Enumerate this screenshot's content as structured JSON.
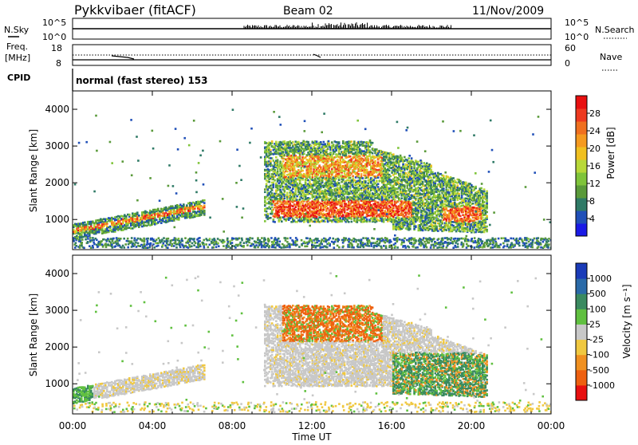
{
  "header": {
    "station": "Pykkvibaer (fitACF)",
    "beam": "Beam 02",
    "date": "11/Nov/2009"
  },
  "strip_labels": {
    "nsky": "N.Sky",
    "nsearch": "N.Search",
    "freq_line1": "Freq.",
    "freq_line2": "[MHz]",
    "nave": "Nave",
    "cpid": "CPID",
    "cpid_value": "normal (fast stereo) 153",
    "nsky_ticks": [
      "10^5",
      "10^0"
    ],
    "nsearch_ticks": [
      "10^5",
      "10^0"
    ],
    "freq_ticks": [
      "18",
      "8"
    ],
    "nave_ticks": [
      "60",
      "0"
    ]
  },
  "chart_data": [
    {
      "type": "heatmap",
      "name": "power",
      "ylabel": "Slant Range [km]",
      "ylim": [
        180,
        4500
      ],
      "y_ticks": [
        1000,
        2000,
        3000,
        4000
      ],
      "colorbar": {
        "label": "Power [dB]",
        "range": [
          0,
          32
        ],
        "ticks": [
          "4",
          "8",
          "12",
          "16",
          "20",
          "24",
          "28"
        ],
        "colors": [
          "#1a1ae6",
          "#2050b8",
          "#2f7a66",
          "#5a9a3a",
          "#7fc43a",
          "#b8d838",
          "#f0c020",
          "#f59a20",
          "#f07020",
          "#ee3a20",
          "#e81010"
        ]
      }
    },
    {
      "type": "heatmap",
      "name": "velocity",
      "ylabel": "Slant Range [km]",
      "ylim": [
        180,
        4500
      ],
      "y_ticks": [
        1000,
        2000,
        3000,
        4000
      ],
      "colorbar": {
        "label": "Velocity [m s⁻¹]",
        "ticks": [
          "1000",
          "500",
          "100",
          "25",
          "-25",
          "-100",
          "-500",
          "-1000"
        ],
        "colors": [
          "#1a3bb8",
          "#2a6aa8",
          "#3a8a60",
          "#60c040",
          "#c8c8c8",
          "#f0c840",
          "#f09020",
          "#ee6010",
          "#e81010"
        ]
      }
    }
  ],
  "x_axis": {
    "label": "Time UT",
    "xlim": [
      "00:00",
      "24:00"
    ],
    "ticks": [
      "00:00",
      "04:00",
      "08:00",
      "12:00",
      "16:00",
      "20:00",
      "00:00"
    ]
  }
}
